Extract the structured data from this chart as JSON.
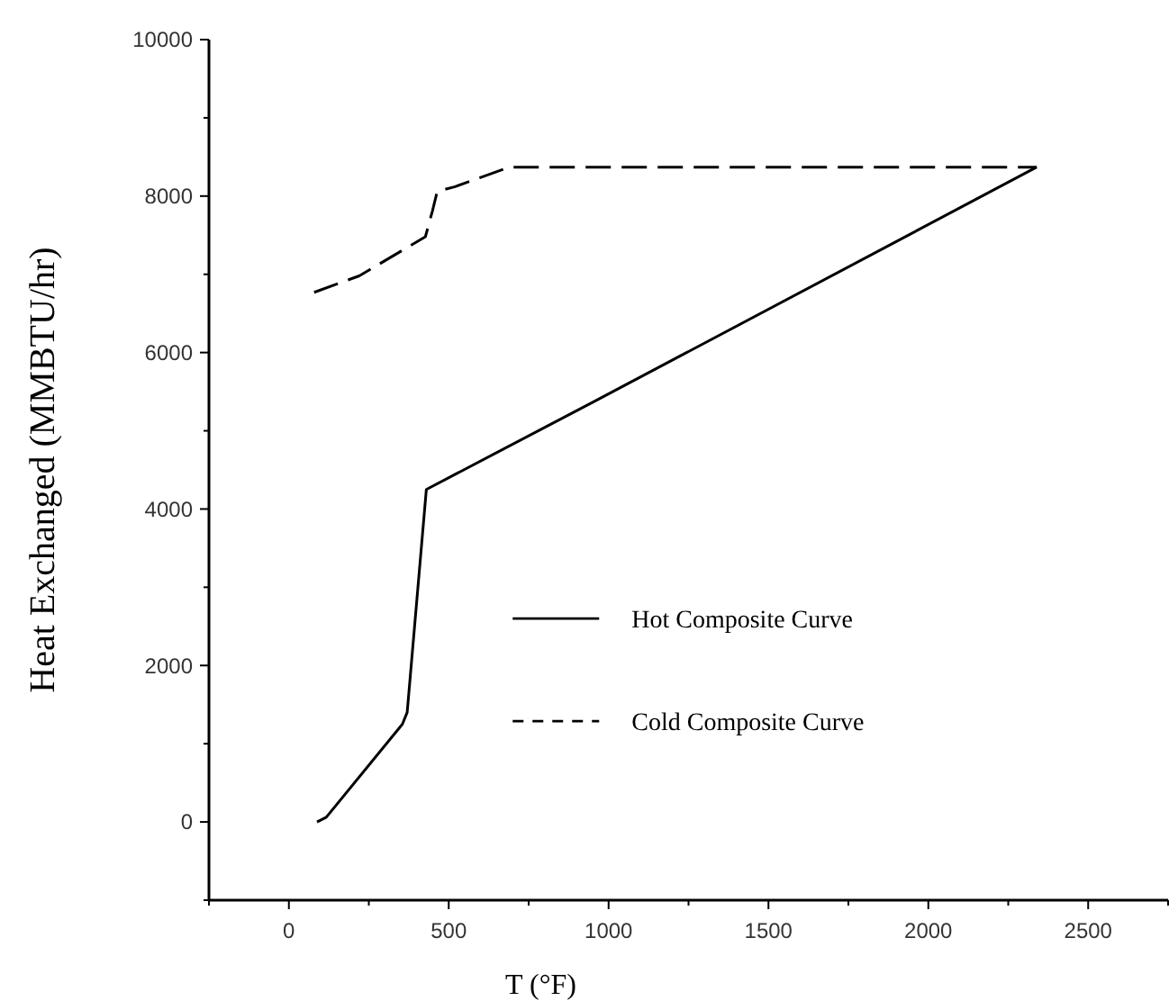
{
  "chart_data": {
    "type": "line",
    "xlabel": "T (°F)",
    "ylabel": "Heat Exchanged (MMBTU/hr)",
    "xlim": [
      -250,
      2750
    ],
    "xticks": [
      {
        "value": -250,
        "label": null
      },
      0,
      {
        "value": 250,
        "label": null
      },
      500,
      {
        "value": 750,
        "label": null
      },
      1000,
      {
        "value": 1250,
        "label": null
      },
      1500,
      {
        "value": 1750,
        "label": null
      },
      2000,
      {
        "value": 2250,
        "label": null
      },
      2500,
      {
        "value": 2750,
        "label": null
      }
    ],
    "ylim": [
      -1000,
      10000
    ],
    "yticks": [
      {
        "value": -1000,
        "label": null
      },
      0,
      {
        "value": 1000,
        "label": null
      },
      2000,
      {
        "value": 3000,
        "label": null
      },
      4000,
      {
        "value": 5000,
        "label": null
      },
      6000,
      {
        "value": 7000,
        "label": null
      },
      8000,
      {
        "value": 9000,
        "label": null
      },
      10000
    ],
    "grid": false,
    "legend": "right",
    "marker": "none",
    "series": [
      {
        "name": "Hot Composite Curve",
        "color": "#000000",
        "line_style": "solid",
        "x": [
          88,
          117,
          355,
          370,
          430,
          953,
          2339
        ],
        "values": [
          0,
          60,
          1250,
          1400,
          4250,
          5370,
          8370
        ]
      },
      {
        "name": "Cold Composite Curve",
        "color": "#000000",
        "line_style": "dashed",
        "x": [
          79,
          220,
          427,
          449,
          464,
          520,
          689,
          2339
        ],
        "values": [
          6770,
          6980,
          7480,
          7810,
          8060,
          8120,
          8370,
          8370
        ]
      }
    ]
  }
}
